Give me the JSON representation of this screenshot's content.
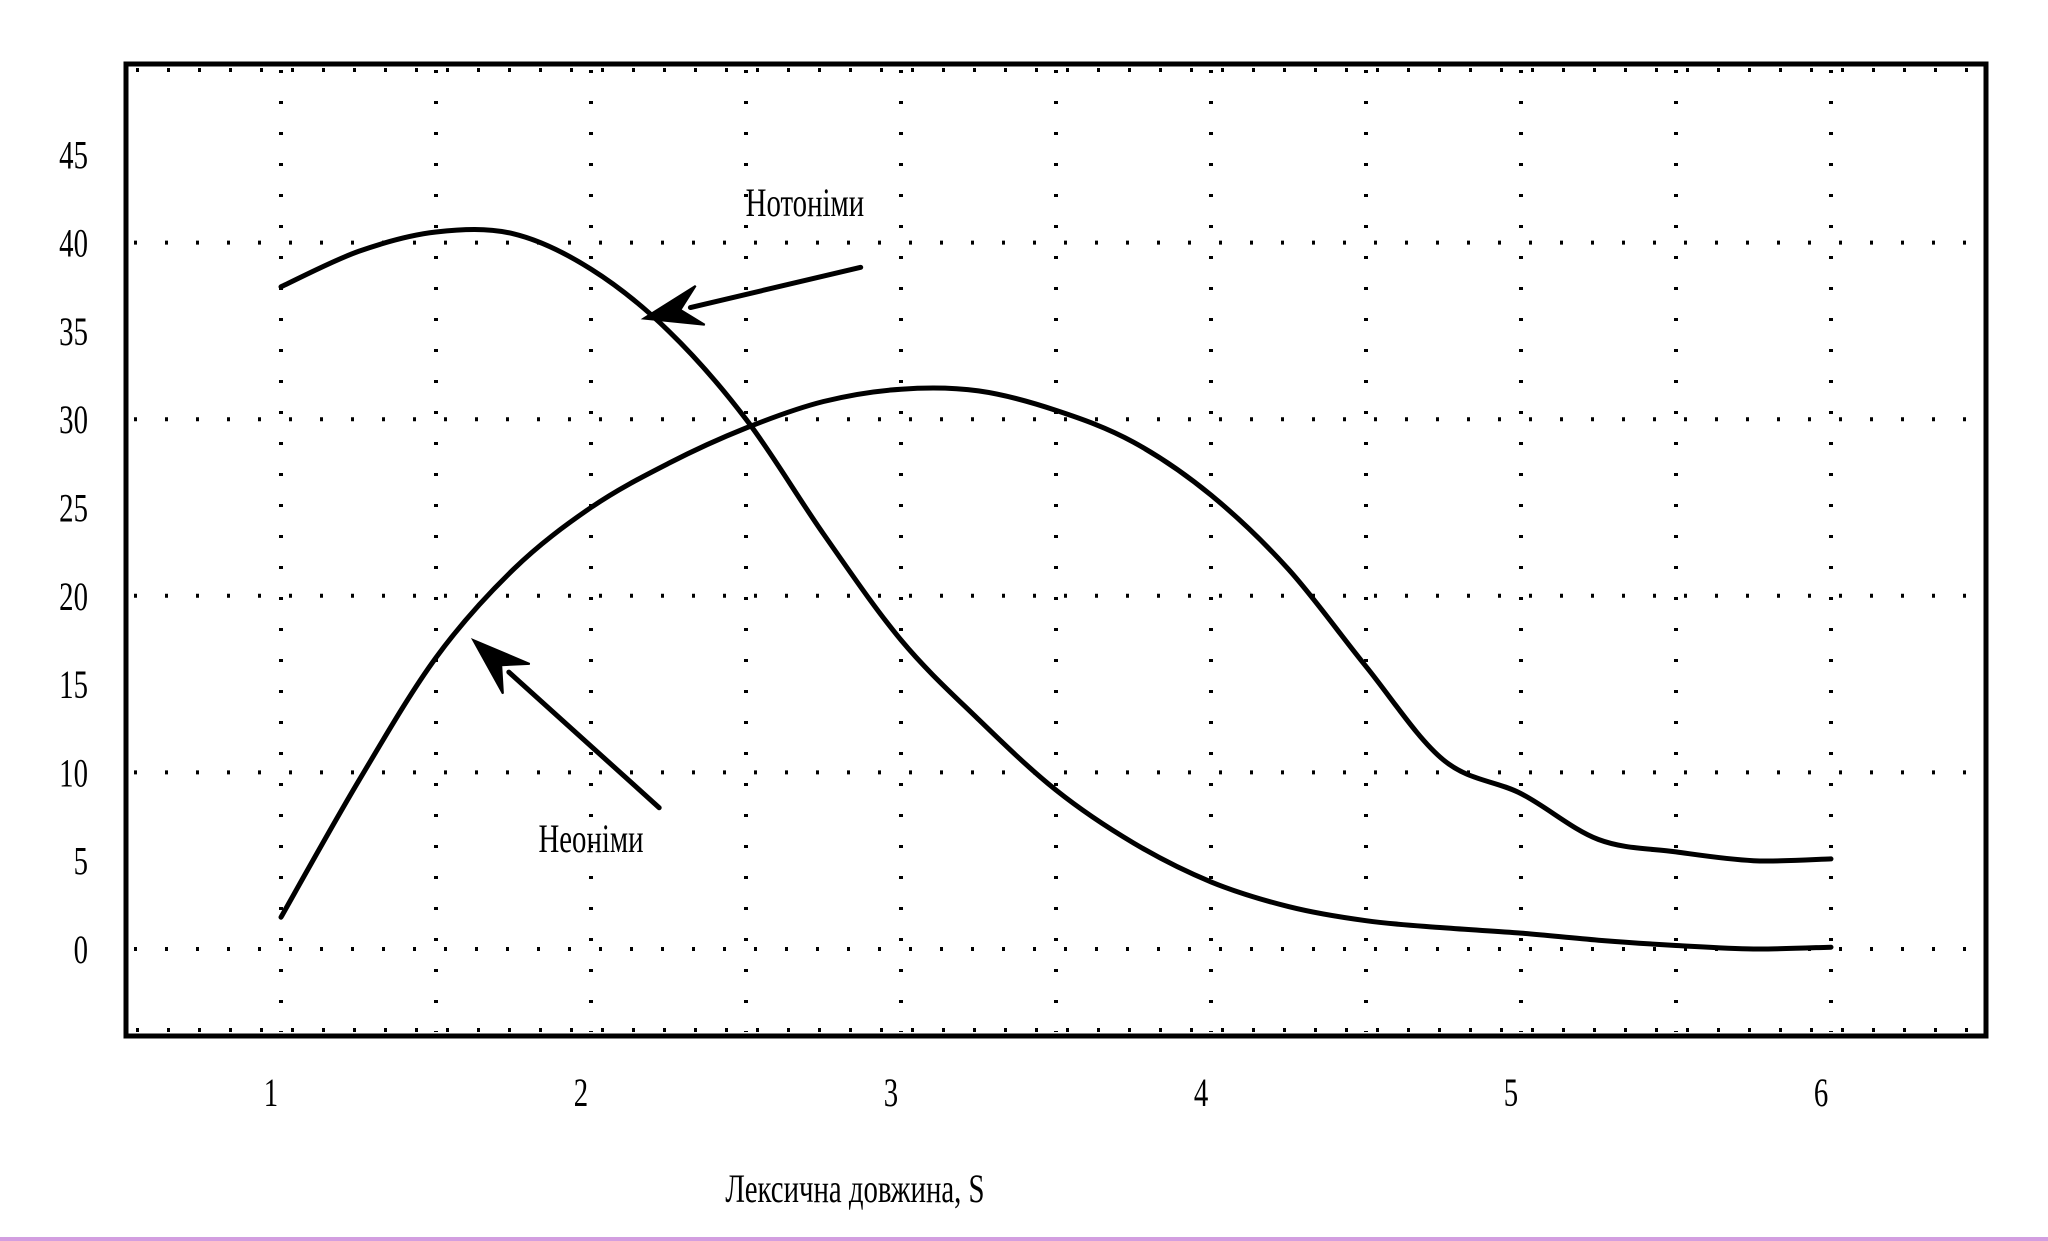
{
  "chart_data": {
    "type": "line",
    "title": "",
    "xlabel": "Лексична довжина, S",
    "ylabel": "",
    "xlim": [
      0.5,
      6.5
    ],
    "ylim": [
      -5,
      50
    ],
    "x_ticks": [
      1,
      2,
      3,
      4,
      5,
      6
    ],
    "y_ticks": [
      0,
      5,
      10,
      15,
      20,
      25,
      30,
      35,
      40,
      45
    ],
    "x_grid": [
      1,
      1.5,
      2,
      2.5,
      3,
      3.5,
      4,
      4.5,
      5,
      5.5,
      6
    ],
    "y_grid": [
      0,
      10,
      20,
      30,
      40
    ],
    "grid": true,
    "legend": "none",
    "series": [
      {
        "name": "Нотоніми",
        "x": [
          1,
          1.25,
          1.5,
          1.75,
          2,
          2.25,
          2.5,
          2.75,
          3,
          3.25,
          3.5,
          3.75,
          4,
          4.25,
          4.5,
          4.75,
          5,
          5.25,
          5.5,
          5.75,
          6
        ],
        "y": [
          37.5,
          39.5,
          40.6,
          40.5,
          38.5,
          35,
          30,
          23.5,
          17.5,
          13,
          9,
          6,
          3.8,
          2.4,
          1.6,
          1.2,
          0.9,
          0.5,
          0.2,
          0,
          0.1
        ]
      },
      {
        "name": "Неоніми",
        "x": [
          1,
          1.25,
          1.5,
          1.75,
          2,
          2.25,
          2.5,
          2.75,
          3,
          3.25,
          3.5,
          3.75,
          4,
          4.25,
          4.5,
          4.75,
          5,
          5.25,
          5.5,
          5.75,
          6
        ],
        "y": [
          1.8,
          9.5,
          16.5,
          21.5,
          25,
          27.5,
          29.5,
          31,
          31.7,
          31.6,
          30.5,
          28.7,
          25.7,
          21.5,
          16,
          10.7,
          8.8,
          6.2,
          5.5,
          5,
          5.1
        ]
      }
    ],
    "annotations": [
      {
        "text": "Нотоніми",
        "series": "Нотоніми",
        "label_x": 2.69,
        "label_y": 41.5,
        "arrow_from": [
          2.87,
          38.6
        ],
        "arrow_to": [
          2.17,
          35.7
        ]
      },
      {
        "text": "Неоніми",
        "series": "Неоніми",
        "label_x": 2.0,
        "label_y": 5.5,
        "arrow_from": [
          2.22,
          8
        ],
        "arrow_to": [
          1.62,
          17.5
        ]
      }
    ]
  }
}
